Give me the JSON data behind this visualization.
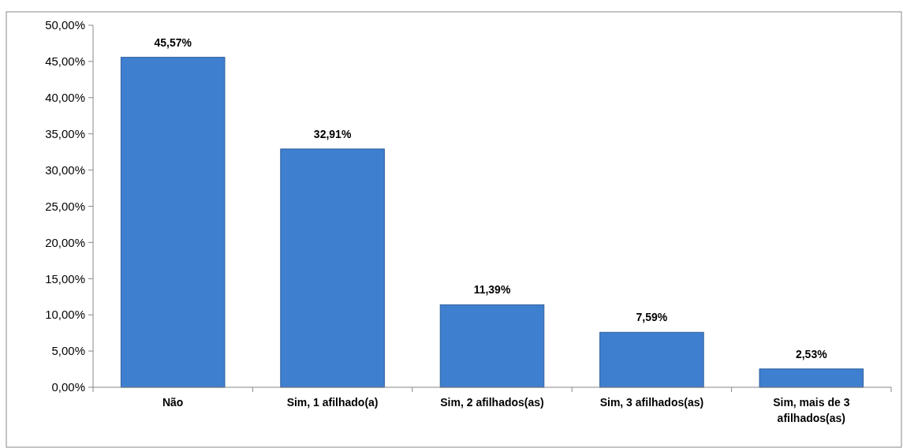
{
  "chart_data": {
    "type": "bar",
    "categories": [
      "Não",
      "Sim, 1 afilhado(a)",
      "Sim, 2 afilhados(as)",
      "Sim, 3 afilhados(as)",
      "Sim, mais de 3 afilhados(as)"
    ],
    "values": [
      45.57,
      32.91,
      11.39,
      7.59,
      2.53
    ],
    "value_labels": [
      "45,57%",
      "32,91%",
      "11,39%",
      "7,59%",
      "2,53%"
    ],
    "color": "#3f7fd0",
    "ylim": [
      0,
      50
    ],
    "yticks": [
      {
        "value": 0,
        "label": "0,00%"
      },
      {
        "value": 5,
        "label": "5,00%"
      },
      {
        "value": 10,
        "label": "10,00%"
      },
      {
        "value": 15,
        "label": "15,00%"
      },
      {
        "value": 20,
        "label": "20,00%"
      },
      {
        "value": 25,
        "label": "25,00%"
      },
      {
        "value": 30,
        "label": "30,00%"
      },
      {
        "value": 35,
        "label": "35,00%"
      },
      {
        "value": 40,
        "label": "40,00%"
      },
      {
        "value": 45,
        "label": "45,00%"
      },
      {
        "value": 50,
        "label": "50,00%"
      }
    ],
    "grid": false
  }
}
